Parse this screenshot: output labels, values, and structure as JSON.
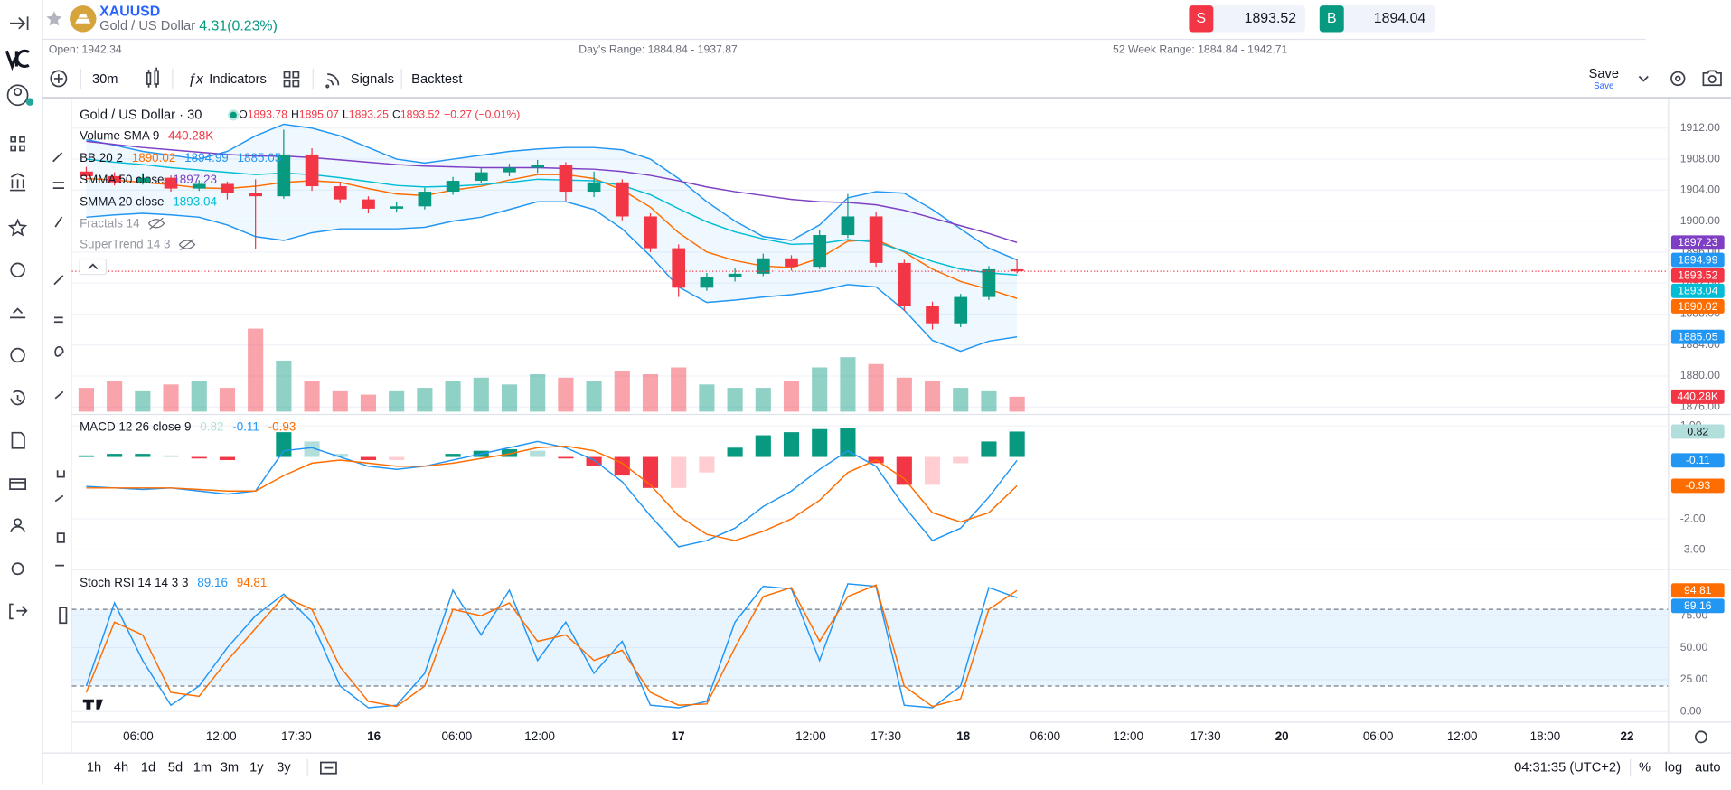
{
  "header": {
    "symbol": "XAUUSD",
    "name": "Gold / US Dollar",
    "change": "4.31(0.23%)",
    "sell_label": "S",
    "sell": 1893.52,
    "buy_label": "B",
    "buy": 1894.04
  },
  "stats": {
    "open": "Open: 1942.34",
    "day_range": "Day's Range: 1884.84 - 1937.87",
    "week52_range": "52 Week Range: 1884.84 - 1942.71"
  },
  "toolbar": {
    "interval": "30m",
    "indicators": "Indicators",
    "signals": "Signals",
    "backtest": "Backtest",
    "save": "Save",
    "save_sub": "Save"
  },
  "chart_data": {
    "type": "candlestick",
    "title": "Gold / US Dollar · 30",
    "ohlc_labels": [
      "O",
      "H",
      "L",
      "C"
    ],
    "change": "−0.27 (−0.01%)",
    "up_color": "#089981",
    "down_color": "#f23645",
    "open": [
      1906.4,
      1905.8,
      1905.0,
      1905.6,
      1904.2,
      1904.8,
      1903.6,
      1903.2,
      1908.6,
      1904.5,
      1902.8,
      1901.6,
      1901.9,
      1903.8,
      1905.2,
      1906.3,
      1906.9,
      1907.3,
      1903.8,
      1905.0,
      1900.6,
      1896.5,
      1891.4,
      1892.8,
      1893.2,
      1895.2,
      1894.1,
      1898.2,
      1900.6,
      1894.6,
      1889.0,
      1886.8,
      1890.2,
      1893.78
    ],
    "high": [
      1907.0,
      1906.3,
      1906.2,
      1905.9,
      1905.3,
      1905.1,
      1905.4,
      1911.8,
      1909.4,
      1905.0,
      1903.2,
      1902.5,
      1904.3,
      1905.7,
      1906.8,
      1907.4,
      1907.9,
      1907.6,
      1906.4,
      1905.4,
      1901.0,
      1897.0,
      1893.3,
      1893.9,
      1895.8,
      1895.6,
      1898.8,
      1903.5,
      1901.2,
      1895.0,
      1889.6,
      1890.6,
      1894.2,
      1895.07
    ],
    "low": [
      1905.2,
      1904.6,
      1904.7,
      1903.8,
      1903.9,
      1902.8,
      1896.4,
      1902.9,
      1903.9,
      1902.3,
      1901.0,
      1901.1,
      1901.5,
      1903.4,
      1904.9,
      1905.8,
      1906.2,
      1902.6,
      1903.1,
      1900.1,
      1896.0,
      1890.2,
      1891.0,
      1892.2,
      1892.9,
      1893.6,
      1893.8,
      1897.8,
      1894.1,
      1888.4,
      1886.0,
      1886.3,
      1889.8,
      1893.25
    ],
    "close": [
      1905.8,
      1905.0,
      1905.6,
      1904.2,
      1904.8,
      1903.6,
      1903.2,
      1908.6,
      1904.5,
      1902.8,
      1901.6,
      1901.9,
      1903.8,
      1905.2,
      1906.3,
      1906.9,
      1907.3,
      1903.8,
      1905.0,
      1900.6,
      1896.5,
      1891.4,
      1892.8,
      1893.2,
      1895.2,
      1894.1,
      1898.2,
      1900.6,
      1894.6,
      1889.0,
      1886.8,
      1890.2,
      1893.78,
      1893.52
    ],
    "ylim": [
      1875.4,
      1915.4
    ],
    "yticks": [
      {
        "value": 1876,
        "label": "1876.00"
      },
      {
        "value": 1880,
        "label": "1880.00"
      },
      {
        "value": 1884,
        "label": "1884.00"
      },
      {
        "value": 1888,
        "label": "1888.00"
      },
      {
        "value": 1892,
        "label": "1892.00"
      },
      {
        "value": 1896,
        "label": "1896.00"
      },
      {
        "value": 1900,
        "label": "1900.00"
      },
      {
        "value": 1904,
        "label": "1904.00"
      },
      {
        "value": 1908,
        "label": "1908.00"
      },
      {
        "value": 1912,
        "label": "1912.00"
      }
    ],
    "grid": true,
    "xlabels": [
      "06:00",
      "12:00",
      "17:30",
      "16",
      "06:00",
      "12:00",
      "17",
      "12:00",
      "17:30",
      "18",
      "06:00",
      "12:00",
      "17:30",
      "20",
      "06:00",
      "12:00",
      "18:00",
      "22"
    ],
    "volume": {
      "name": "Volume SMA 9",
      "values": [
        700,
        900,
        600,
        800,
        900,
        700,
        2440,
        1500,
        900,
        600,
        500,
        600,
        700,
        900,
        1000,
        800,
        1100,
        1000,
        900,
        1200,
        1100,
        1300,
        800,
        700,
        700,
        900,
        1300,
        1600,
        1400,
        1000,
        900,
        700,
        600,
        440.28
      ],
      "value_labels": [
        null,
        null,
        null,
        null,
        null,
        null,
        null,
        null,
        null,
        null,
        null,
        null,
        null,
        null,
        null,
        null,
        null,
        null,
        null,
        null,
        null,
        null,
        null,
        null,
        null,
        null,
        null,
        null,
        null,
        null,
        null,
        null,
        null,
        "440.28K"
      ]
    },
    "indicators": [
      {
        "name": "BB 20 2",
        "fill": true,
        "series": [
          {
            "color": "#ff6d00",
            "values": [
              1905.5,
              1905.3,
              1905.0,
              1904.7,
              1904.3,
              1904.2,
              1904.5,
              1905.0,
              1905.2,
              1905.0,
              1904.2,
              1903.5,
              1903.3,
              1904.0,
              1904.5,
              1905.3,
              1906.0,
              1906.0,
              1905.5,
              1904.0,
              1901.8,
              1898.5,
              1896.0,
              1894.9,
              1894.2,
              1894.0,
              1895.2,
              1897.4,
              1897.6,
              1896.0,
              1893.8,
              1892.2,
              1891.2,
              1890.02
            ]
          },
          {
            "color": "#2196f3",
            "values": [
              1910.5,
              1909.8,
              1909.0,
              1908.5,
              1908.0,
              1909.0,
              1911.0,
              1912.5,
              1912.0,
              1911.0,
              1909.5,
              1908.0,
              1907.5,
              1908.0,
              1908.5,
              1909.0,
              1909.3,
              1909.5,
              1909.5,
              1909.2,
              1908.0,
              1905.5,
              1902.5,
              1900.0,
              1898.0,
              1897.5,
              1899.5,
              1903.0,
              1903.8,
              1903.6,
              1901.5,
              1899.0,
              1896.5,
              1894.99
            ]
          },
          {
            "color": "#2196f3",
            "values": [
              1900.5,
              1900.8,
              1901.0,
              1900.8,
              1900.5,
              1899.5,
              1898.0,
              1897.5,
              1898.5,
              1899.0,
              1899.0,
              1899.0,
              1899.2,
              1900.0,
              1900.5,
              1901.5,
              1902.5,
              1902.5,
              1901.5,
              1899.0,
              1895.5,
              1891.5,
              1889.5,
              1889.8,
              1890.2,
              1890.5,
              1891.0,
              1891.8,
              1891.5,
              1888.5,
              1884.6,
              1883.2,
              1884.5,
              1885.05
            ]
          }
        ]
      },
      {
        "name": "SMMA 50 close",
        "series": [
          {
            "color": "#7e3fc4",
            "values": [
              1910.3,
              1909.9,
              1909.5,
              1909.2,
              1908.9,
              1908.6,
              1908.4,
              1908.4,
              1908.2,
              1907.9,
              1907.6,
              1907.3,
              1907.1,
              1907.0,
              1906.9,
              1906.9,
              1906.9,
              1906.8,
              1906.7,
              1906.4,
              1905.9,
              1905.2,
              1904.4,
              1903.8,
              1903.3,
              1902.8,
              1902.5,
              1902.4,
              1902.1,
              1901.4,
              1900.4,
              1899.4,
              1898.4,
              1897.23
            ]
          }
        ]
      },
      {
        "name": "SMMA 20 close",
        "series": [
          {
            "color": "#00bcd4",
            "values": [
              1908.0,
              1907.6,
              1907.3,
              1906.9,
              1906.6,
              1906.3,
              1906.0,
              1906.2,
              1906.0,
              1905.6,
              1905.1,
              1904.6,
              1904.4,
              1904.5,
              1904.7,
              1905.0,
              1905.4,
              1905.3,
              1905.2,
              1904.6,
              1903.4,
              1901.6,
              1899.9,
              1898.6,
              1897.7,
              1897.0,
              1897.1,
              1897.6,
              1897.3,
              1896.1,
              1894.8,
              1893.8,
              1893.3,
              1893.04
            ]
          }
        ]
      }
    ],
    "hidden_indicators": [
      "Fractals 14",
      "SuperTrend 14 3"
    ],
    "macd": {
      "name": "MACD 12 26 close 9",
      "ylim": [
        -3.54,
        1.32
      ],
      "yticks": [
        {
          "value": 1,
          "label": "1.00"
        },
        {
          "value": -2,
          "label": "-2.00"
        },
        {
          "value": -3,
          "label": "-3.00"
        }
      ],
      "histogram": [
        0.05,
        0.1,
        0.1,
        0.05,
        -0.05,
        -0.1,
        0,
        0.8,
        0.5,
        0.1,
        -0.1,
        -0.1,
        0,
        0.1,
        0.2,
        0.25,
        0.2,
        -0.05,
        -0.3,
        -0.6,
        -1.0,
        -1.0,
        -0.5,
        0.3,
        0.7,
        0.8,
        0.9,
        0.95,
        -0.2,
        -0.9,
        -0.9,
        -0.2,
        0.5,
        0.82
      ],
      "series": [
        {
          "color": "#2196f3",
          "values": [
            -0.95,
            -1.0,
            -1.05,
            -1.0,
            -1.1,
            -1.2,
            -1.1,
            0.2,
            0.3,
            0.0,
            -0.3,
            -0.4,
            -0.3,
            -0.1,
            0.1,
            0.3,
            0.5,
            0.3,
            -0.1,
            -0.8,
            -1.9,
            -2.9,
            -2.7,
            -2.3,
            -1.6,
            -1.1,
            -0.4,
            0.2,
            -0.3,
            -1.6,
            -2.7,
            -2.3,
            -1.3,
            -0.11
          ]
        },
        {
          "color": "#ff6d00",
          "values": [
            -1.0,
            -1.0,
            -1.0,
            -1.0,
            -1.05,
            -1.1,
            -1.1,
            -0.6,
            -0.2,
            -0.1,
            -0.2,
            -0.3,
            -0.3,
            -0.2,
            -0.05,
            0.1,
            0.3,
            0.35,
            0.2,
            -0.2,
            -0.9,
            -1.9,
            -2.5,
            -2.7,
            -2.4,
            -2.0,
            -1.4,
            -0.5,
            -0.1,
            -0.7,
            -1.8,
            -2.1,
            -1.8,
            -0.93
          ]
        }
      ]
    },
    "stoch": {
      "name": "Stoch RSI 14 14 3 3",
      "ylim": [
        -6,
        110
      ],
      "yticks": [
        {
          "value": 0,
          "label": "0.00"
        },
        {
          "value": 25,
          "label": "25.00"
        },
        {
          "value": 50,
          "label": "50.00"
        },
        {
          "value": 75,
          "label": "75.00"
        }
      ],
      "bands": [
        20,
        80
      ],
      "series": [
        {
          "color": "#2196f3",
          "values": [
            20,
            85,
            40,
            5,
            20,
            50,
            75,
            92,
            70,
            20,
            3,
            5,
            30,
            95,
            60,
            95,
            40,
            70,
            30,
            55,
            5,
            3,
            8,
            70,
            98,
            96,
            40,
            100,
            98,
            5,
            3,
            20,
            97,
            89.16
          ]
        },
        {
          "color": "#ff6d00",
          "values": [
            15,
            70,
            60,
            15,
            12,
            40,
            65,
            90,
            80,
            35,
            8,
            4,
            20,
            80,
            75,
            85,
            55,
            60,
            40,
            48,
            15,
            5,
            6,
            50,
            90,
            97,
            55,
            90,
            99,
            20,
            4,
            10,
            80,
            94.81
          ]
        }
      ]
    }
  },
  "timeframes": [
    "1h",
    "4h",
    "1d",
    "5d",
    "1m",
    "3m",
    "1y",
    "3y"
  ],
  "clock": "04:31:35 (UTC+2)",
  "scale_options": [
    "%",
    "log",
    "auto"
  ]
}
